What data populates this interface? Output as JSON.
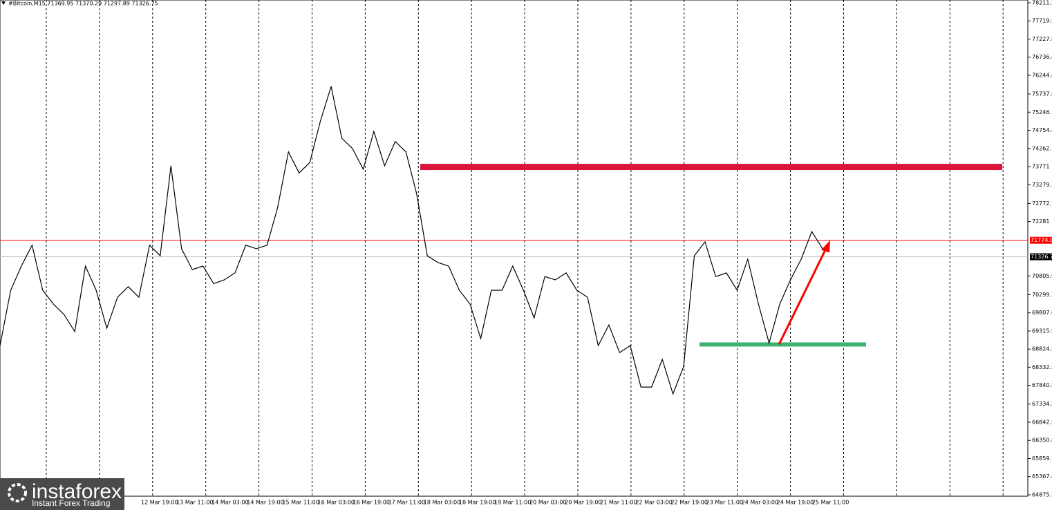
{
  "chart_data": {
    "type": "line",
    "title": "#Bitcoin,M15  71369.95 71370.29 71297.89 71326.75",
    "series": [
      {
        "name": "#Bitcoin",
        "color": "#000000",
        "values": [
          68920,
          70420,
          71075,
          71640,
          70420,
          70045,
          69760,
          69300,
          71075,
          70420,
          69390,
          70230,
          70515,
          70230,
          71640,
          71355,
          73790,
          71545,
          70980,
          71075,
          70600,
          70700,
          70890,
          71640,
          71545,
          71640,
          72670,
          74170,
          73600,
          73880,
          75010,
          75945,
          74540,
          74260,
          73700,
          74725,
          73790,
          74450,
          74170,
          73040,
          71355,
          71170,
          71075,
          70420,
          70045,
          69110,
          70420,
          70420,
          71075,
          70420,
          69670,
          70790,
          70700,
          70890,
          70420,
          70230,
          68920,
          69480,
          68730,
          68920,
          67795,
          67795,
          68545,
          67610,
          68355,
          71355,
          71730,
          70790,
          70890,
          70420,
          71260,
          70045,
          68990,
          70045,
          70700,
          71260,
          72010,
          71545
        ]
      }
    ],
    "x_labels": [
      "12 Mar 19:00",
      "13 Mar 11:00",
      "14 Mar 03:00",
      "14 Mar 19:00",
      "15 Mar 11:00",
      "16 Mar 03:00",
      "16 Mar 19:00",
      "17 Mar 11:00",
      "18 Mar 03:00",
      "18 Mar 19:00",
      "19 Mar 11:00",
      "20 Mar 03:00",
      "20 Mar 19:00",
      "21 Mar 11:00",
      "22 Mar 03:00",
      "22 Mar 19:00",
      "23 Mar 11:00",
      "24 Mar 03:00",
      "24 Mar 19:00",
      "25 Mar 11:00"
    ],
    "ylim": [
      64838,
      78286
    ],
    "yticks": [
      {
        "value": 78211.2,
        "label": "78211.20"
      },
      77719.5,
      77227.8,
      76736.4,
      76244.4,
      75737.8,
      75246.1,
      74754.4,
      74262.7,
      73771.0,
      73279.3,
      72772.7,
      72281.0,
      70805.9,
      70299.3,
      69807.6,
      69315.9,
      68824.2,
      68332.5,
      67840.8,
      67334.2,
      66842.5,
      66350.8,
      65859.1,
      65367.4,
      64875.7
    ],
    "resistance": {
      "value": 73771,
      "color": "#dc143c"
    },
    "support": {
      "value": 68950,
      "color": "#3cb371"
    },
    "arrow": {
      "from": 68950,
      "to": 71774,
      "color": "#ff0000"
    },
    "level_line": {
      "value": 71774,
      "label": "71774.0",
      "color": "#ff0000"
    },
    "price_line": {
      "value": 71326.75,
      "label": "71326.75",
      "color": "#c0c0c0"
    },
    "logo": {
      "name": "instaforex",
      "tagline": "Instant Forex Trading"
    }
  }
}
